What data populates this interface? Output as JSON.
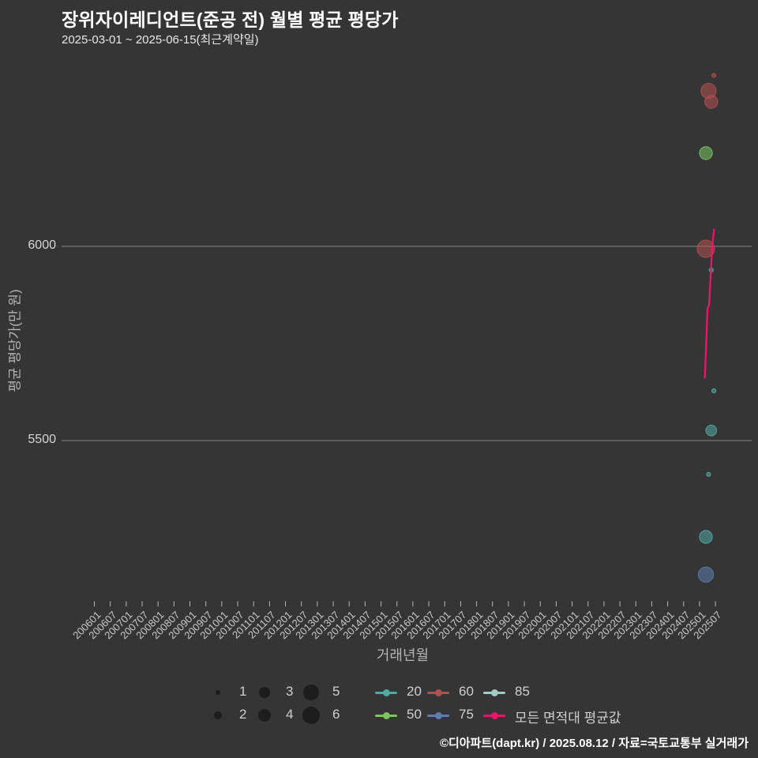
{
  "header": {
    "title": "장위자이레디언트(준공 전) 월별 평균 평당가",
    "subtitle": "2025-03-01 ~ 2025-06-15(최근계약일)"
  },
  "chart_data": {
    "type": "scatter",
    "title": "장위자이레디언트(준공 전) 월별 평균 평당가",
    "xlabel": "거래년월",
    "ylabel": "평균 평당가(만 원)",
    "y_ticks": [
      6000,
      5500
    ],
    "ylim": [
      5080,
      6470
    ],
    "grid": "horizontal-only",
    "x_tick_labels": [
      "200601",
      "200607",
      "200701",
      "200707",
      "200801",
      "200807",
      "200901",
      "200907",
      "201001",
      "201007",
      "201101",
      "201107",
      "201201",
      "201207",
      "201301",
      "201307",
      "201401",
      "201407",
      "201501",
      "201507",
      "201601",
      "201607",
      "201701",
      "201707",
      "201801",
      "201807",
      "201901",
      "201907",
      "202001",
      "202007",
      "202101",
      "202107",
      "202201",
      "202207",
      "202301",
      "202307",
      "202401",
      "202407",
      "202501",
      "202507"
    ],
    "series_colors": {
      "area20": "#52a8a2",
      "area50": "#7ac462",
      "area60": "#b0504f",
      "area75": "#5d7cb0",
      "area85": "#a3cbc6",
      "avg_line": "#f5136b"
    },
    "bubbles": [
      {
        "month": "2025-06",
        "value": 6440,
        "area": "area60",
        "size": 1
      },
      {
        "month": "2025-04",
        "value": 6400,
        "area": "area60",
        "size": 5
      },
      {
        "month": "2025-05",
        "value": 6372,
        "area": "area60",
        "size": 4
      },
      {
        "month": "2025-03",
        "value": 6240,
        "area": "area50",
        "size": 4
      },
      {
        "month": "2025-03",
        "value": 5994,
        "area": "area60",
        "size": 6
      },
      {
        "month": "2025-05",
        "value": 5939,
        "area": "area20",
        "size": 1
      },
      {
        "month": "2025-06",
        "value": 5628,
        "area": "area20",
        "size": 1
      },
      {
        "month": "2025-05",
        "value": 5526,
        "area": "area20",
        "size": 3
      },
      {
        "month": "2025-04",
        "value": 5413,
        "area": "area20",
        "size": 1
      },
      {
        "month": "2025-03",
        "value": 5252,
        "area": "area20",
        "size": 4
      },
      {
        "month": "2025-03",
        "value": 5155,
        "area": "area75",
        "size": 5
      }
    ],
    "avg_line": {
      "name": "모든 면적대 평균값",
      "points": [
        [
          "2025-03-01",
          5660
        ],
        [
          "2025-03-20",
          5770
        ],
        [
          "2025-04-01",
          5840
        ],
        [
          "2025-04-20",
          5850
        ],
        [
          "2025-04-22",
          5862
        ],
        [
          "2025-05-10",
          5940
        ],
        [
          "2025-05-25",
          6000
        ],
        [
          "2025-06-15",
          6045
        ]
      ]
    }
  },
  "legend": {
    "sizes": [
      {
        "label": "1",
        "size": 1
      },
      {
        "label": "2",
        "size": 2
      },
      {
        "label": "3",
        "size": 3
      },
      {
        "label": "4",
        "size": 4
      },
      {
        "label": "5",
        "size": 5
      },
      {
        "label": "6",
        "size": 6
      }
    ],
    "areas": [
      {
        "label": "20",
        "color_key": "area20"
      },
      {
        "label": "50",
        "color_key": "area50"
      },
      {
        "label": "60",
        "color_key": "area60"
      },
      {
        "label": "75",
        "color_key": "area75"
      },
      {
        "label": "85",
        "color_key": "area85"
      },
      {
        "label": "모든 면적대 평균값",
        "color_key": "avg_line"
      }
    ]
  },
  "footer": {
    "credit": "©디아파트(dapt.kr) / 2025.08.12 / 자료=국토교통부 실거래가"
  }
}
